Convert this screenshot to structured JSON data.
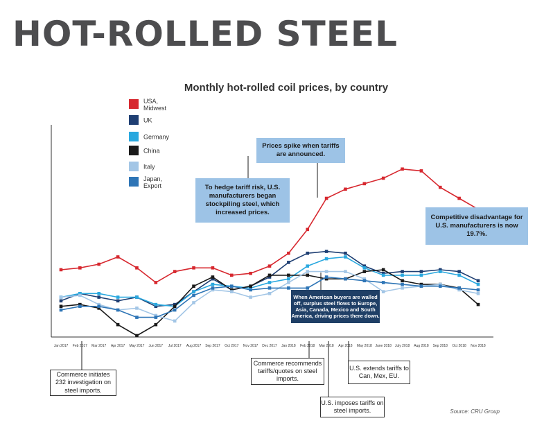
{
  "page": {
    "title": "HOT-ROLLED STEEL"
  },
  "source": "Source: CRU Group",
  "annotations": {
    "spike": "Prices spike when tariffs are announced.",
    "hedge": "To hedge tariff risk, U.S. manufacturers began stockpiling steel, which increased prices.",
    "competitive": "Competitive disadvantage for U.S. manufacturers is now 19.7%.",
    "walled": "When American buyers are walled off, surplus steel flows to Europe, Asia, Canada, Mexico and South America, driving prices there down.",
    "commerce_232": "Commerce initiates 232 investigation on steel imports.",
    "commerce_recommends": "Commerce recommends tariffs/quotes on steel imports.",
    "us_imposes": "U.S. imposes tariffs on steel imports.",
    "us_extends": "U.S. extends tariffs to Can, Mex, EU."
  },
  "chart_data": {
    "type": "line",
    "title": "Monthly hot-rolled coil prices, by country",
    "xlabel": "",
    "ylabel": "",
    "ylim": [
      0,
      100
    ],
    "categories": [
      "Jan 2017",
      "Feb 2017",
      "Mar 2017",
      "Apr 2017",
      "May 2017",
      "Jun 2017",
      "Jul 2017",
      "Aug 2017",
      "Sep 2017",
      "Oct 2017",
      "Nov 2017",
      "Dec 2017",
      "Jan 2018",
      "Feb 2018",
      "Mar 2018",
      "Apr 2018",
      "May 2018",
      "June 2018",
      "July 2018",
      "Aug 2018",
      "Sep 2018",
      "Oct 2018",
      "Nov 2018"
    ],
    "series": [
      {
        "name": "USA, Midwest",
        "color": "#d7282f",
        "values": [
          36,
          37,
          39,
          43,
          37,
          29,
          35,
          37,
          37,
          33,
          34,
          38,
          45,
          58,
          75,
          80,
          83,
          86,
          91,
          90,
          81,
          75,
          69
        ]
      },
      {
        "name": "UK",
        "color": "#1f3f73",
        "values": [
          19,
          23,
          21,
          19,
          21,
          16,
          17,
          24,
          31,
          25,
          27,
          32,
          40,
          45,
          46,
          45,
          38,
          34,
          35,
          35,
          36,
          35,
          30
        ]
      },
      {
        "name": "Germany",
        "color": "#29a8df",
        "values": [
          21,
          23,
          23,
          21,
          21,
          17,
          16,
          24,
          28,
          27,
          26,
          29,
          31,
          38,
          42,
          43,
          37,
          33,
          33,
          33,
          35,
          33,
          28
        ]
      },
      {
        "name": "China",
        "color": "#1a1a1a",
        "values": [
          16,
          17,
          15,
          6,
          0,
          6,
          16,
          27,
          32,
          25,
          27,
          33,
          33,
          33,
          31,
          31,
          35,
          36,
          30,
          28,
          28,
          26,
          17
        ]
      },
      {
        "name": "Italy",
        "color": "#a3c6e6",
        "values": [
          21,
          22,
          17,
          14,
          15,
          11,
          8,
          18,
          25,
          24,
          21,
          23,
          29,
          35,
          35,
          35,
          31,
          24,
          26,
          27,
          28,
          25,
          23
        ]
      },
      {
        "name": "Japan, Export",
        "color": "#2e75b6",
        "values": [
          14,
          16,
          16,
          14,
          10,
          10,
          14,
          22,
          26,
          27,
          25,
          26,
          26,
          26,
          32,
          31,
          30,
          29,
          28,
          27,
          27,
          26,
          25
        ]
      }
    ],
    "legend": [
      {
        "label1": "USA,",
        "label2": "Midwest",
        "color": "#d7282f"
      },
      {
        "label1": "UK",
        "label2": "",
        "color": "#1f3f73"
      },
      {
        "label1": "Germany",
        "label2": "",
        "color": "#29a8df"
      },
      {
        "label1": "China",
        "label2": "",
        "color": "#1a1a1a"
      },
      {
        "label1": "Italy",
        "label2": "",
        "color": "#a3c6e6"
      },
      {
        "label1": "Japan,",
        "label2": "Export",
        "color": "#2e75b6"
      }
    ]
  }
}
